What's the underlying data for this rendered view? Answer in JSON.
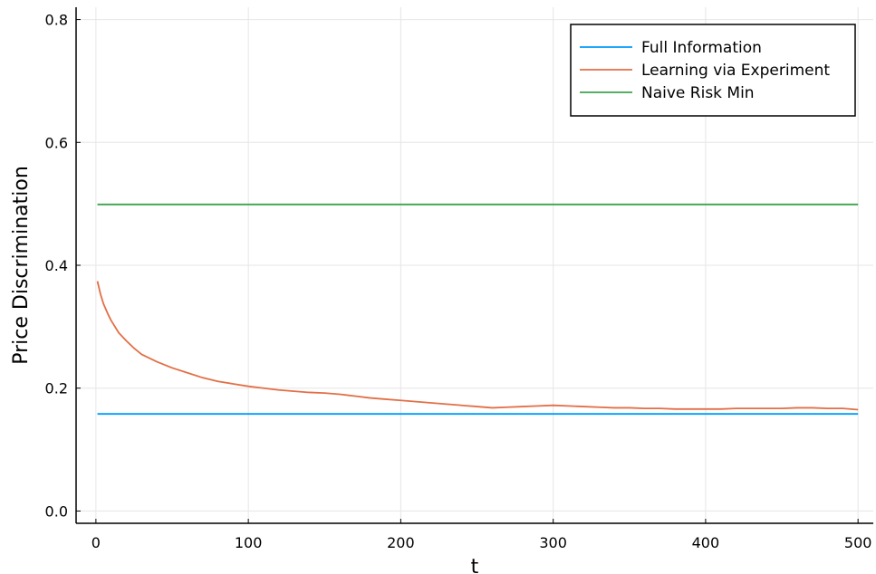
{
  "chart_data": {
    "type": "line",
    "title": "",
    "xlabel": "t",
    "ylabel": "Price Discrimination",
    "xlim": [
      -13,
      510
    ],
    "ylim": [
      -0.02,
      0.82
    ],
    "xticks": [
      0,
      100,
      200,
      300,
      400,
      500
    ],
    "xtick_labels": [
      "0",
      "100",
      "200",
      "300",
      "400",
      "500"
    ],
    "yticks": [
      0.0,
      0.2,
      0.4,
      0.6,
      0.8
    ],
    "ytick_labels": [
      "0.0",
      "0.2",
      "0.4",
      "0.6",
      "0.8"
    ],
    "grid": true,
    "legend_position": "top-right",
    "series": [
      {
        "name": "Full Information",
        "color": "#009af9",
        "x": [
          1,
          500
        ],
        "y": [
          0.158,
          0.158
        ]
      },
      {
        "name": "Learning via Experiment",
        "color": "#e26f46",
        "x": [
          1,
          3,
          5,
          8,
          10,
          13,
          15,
          20,
          25,
          30,
          40,
          50,
          60,
          70,
          80,
          90,
          100,
          110,
          120,
          130,
          140,
          150,
          160,
          170,
          180,
          190,
          200,
          210,
          220,
          230,
          240,
          250,
          260,
          270,
          280,
          290,
          300,
          310,
          320,
          330,
          340,
          350,
          360,
          370,
          380,
          390,
          400,
          410,
          420,
          430,
          440,
          450,
          460,
          470,
          480,
          490,
          500
        ],
        "y": [
          0.374,
          0.353,
          0.337,
          0.32,
          0.31,
          0.298,
          0.29,
          0.277,
          0.265,
          0.255,
          0.243,
          0.233,
          0.225,
          0.217,
          0.211,
          0.207,
          0.203,
          0.2,
          0.197,
          0.195,
          0.193,
          0.192,
          0.19,
          0.187,
          0.184,
          0.182,
          0.18,
          0.178,
          0.176,
          0.174,
          0.172,
          0.17,
          0.168,
          0.169,
          0.17,
          0.171,
          0.172,
          0.171,
          0.17,
          0.169,
          0.168,
          0.168,
          0.167,
          0.167,
          0.166,
          0.166,
          0.166,
          0.166,
          0.167,
          0.167,
          0.167,
          0.167,
          0.168,
          0.168,
          0.167,
          0.167,
          0.165
        ]
      },
      {
        "name": "Naive Risk Min",
        "color": "#3da44d",
        "x": [
          1,
          500
        ],
        "y": [
          0.499,
          0.499
        ]
      }
    ]
  }
}
